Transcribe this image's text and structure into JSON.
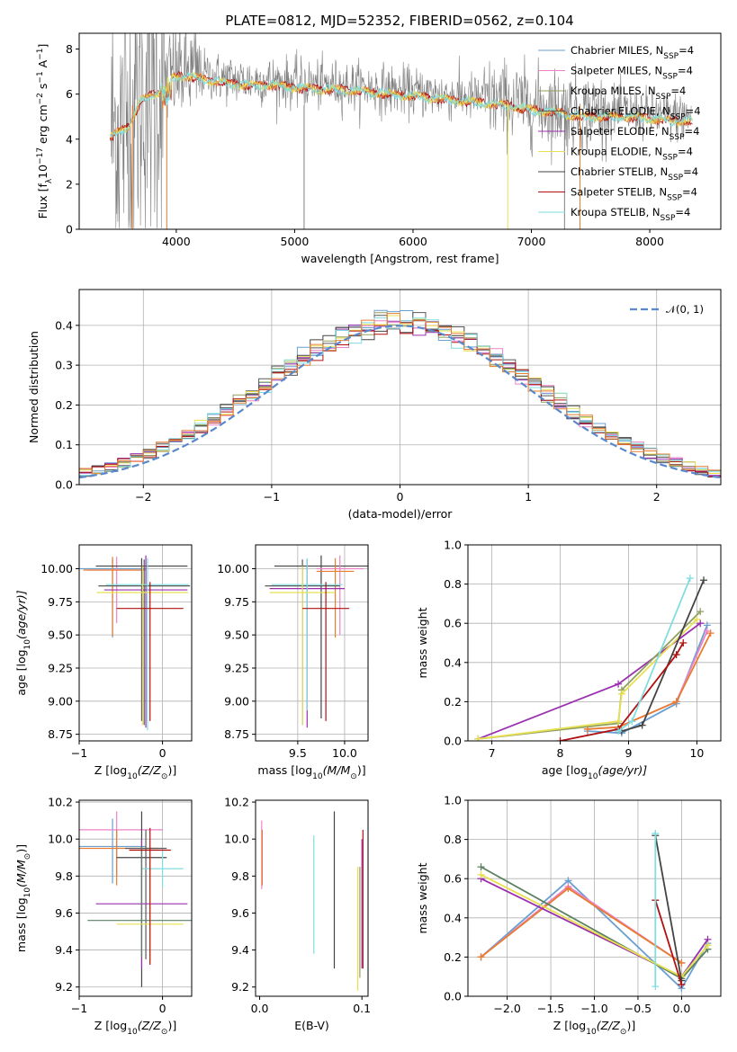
{
  "figure_title": "PLATE=0812, MJD=52352, FIBERID=0562, z=0.104",
  "legend_colors": [
    "#6a9fd0",
    "#ee82c8",
    "#8f9f5f",
    "#5a5a5a",
    "#9a30b0",
    "#e8e050",
    "#444444",
    "#b01010",
    "#80dde0"
  ],
  "chart_data": [
    {
      "id": "spectrum",
      "type": "line",
      "title": "PLATE=0812, MJD=52352, FIBERID=0562, z=0.104",
      "xlabel": "wavelength [Angstrom, rest frame]",
      "ylabel_parts": [
        "Flux [f",
        "λ",
        "10",
        "−17",
        " erg cm",
        "−2",
        " s",
        "−1",
        " A",
        "−1",
        "]"
      ],
      "xlim": [
        3180,
        8600
      ],
      "ylim": [
        0,
        8.7
      ],
      "xticks": [
        4000,
        5000,
        6000,
        7000,
        8000
      ],
      "yticks": [
        0,
        2,
        4,
        6,
        8
      ],
      "grid": false,
      "legend_position": "top-right",
      "legend": [
        {
          "label": "Chabrier MILES, N",
          "sub": "SSP",
          "suffix": "=4",
          "color": "#6a9fd0"
        },
        {
          "label": "Salpeter MILES, N",
          "sub": "SSP",
          "suffix": "=4",
          "color": "#ee82c8"
        },
        {
          "label": "Kroupa MILES, N",
          "sub": "SSP",
          "suffix": "=4",
          "color": "#8f9f5f"
        },
        {
          "label": "Chabrier ELODIE, N",
          "sub": "SSP",
          "suffix": "=4",
          "color": "#5a5a5a"
        },
        {
          "label": "Salpeter ELODIE, N",
          "sub": "SSP",
          "suffix": "=4",
          "color": "#9a30b0"
        },
        {
          "label": "Kroupa ELODIE, N",
          "sub": "SSP",
          "suffix": "=4",
          "color": "#e8e050"
        },
        {
          "label": "Chabrier STELIB, N",
          "sub": "SSP",
          "suffix": "=4",
          "color": "#444444"
        },
        {
          "label": "Salpeter STELIB, N",
          "sub": "SSP",
          "suffix": "=4",
          "color": "#b01010"
        },
        {
          "label": "Kroupa STELIB, N",
          "sub": "SSP",
          "suffix": "=4",
          "color": "#80dde0"
        }
      ],
      "continuum": [
        [
          3450,
          4.3
        ],
        [
          3600,
          4.8
        ],
        [
          3700,
          5.9
        ],
        [
          3850,
          6.3
        ],
        [
          3950,
          6.9
        ],
        [
          4050,
          7.0
        ],
        [
          4200,
          6.9
        ],
        [
          4400,
          6.7
        ],
        [
          4600,
          6.6
        ],
        [
          4800,
          6.6
        ],
        [
          5000,
          6.5
        ],
        [
          5200,
          6.4
        ],
        [
          5400,
          6.4
        ],
        [
          5600,
          6.3
        ],
        [
          5800,
          6.2
        ],
        [
          6000,
          6.1
        ],
        [
          6200,
          6.0
        ],
        [
          6400,
          5.9
        ],
        [
          6600,
          5.8
        ],
        [
          6800,
          5.7
        ],
        [
          7000,
          5.5
        ],
        [
          7200,
          5.4
        ],
        [
          7400,
          5.2
        ],
        [
          7600,
          5.2
        ],
        [
          7800,
          5.2
        ],
        [
          8000,
          5.1
        ],
        [
          8200,
          5.0
        ],
        [
          8350,
          5.0
        ]
      ]
    },
    {
      "id": "residuals",
      "type": "line",
      "xlabel": "(data-model)/error",
      "ylabel": "Normed distribution",
      "xlim": [
        -2.5,
        2.5
      ],
      "ylim": [
        0,
        0.49
      ],
      "xticks": [
        -2,
        -1,
        0,
        1,
        2
      ],
      "yticks": [
        0.0,
        0.1,
        0.2,
        0.3,
        0.4
      ],
      "grid": true,
      "legend_position": "top-right",
      "legend_label": "𝒩(0, 1)",
      "legend_color": "#5a88cc",
      "bin_width": 0.1
    },
    {
      "id": "age-vs-Z",
      "type": "scatter",
      "xlabel_parts": [
        "Z [log",
        "10",
        "(Z/Z",
        "⊙",
        ")]"
      ],
      "ylabel_parts": [
        "age  [log",
        "10",
        "(age/yr)]"
      ],
      "xlim": [
        -1.0,
        0.35
      ],
      "ylim": [
        8.7,
        10.18
      ],
      "xticks": [
        -1,
        0
      ],
      "yticks": [
        8.75,
        9.0,
        9.25,
        9.5,
        9.75,
        10.0
      ],
      "grid": true,
      "points": [
        {
          "x": -0.6,
          "y": 10.0,
          "xerr": 0.4,
          "yerr": [
            0.52,
            0.08
          ],
          "color": "#6a9fd0"
        },
        {
          "x": -0.55,
          "y": 9.99,
          "xerr": 0.35,
          "yerr": [
            0.4,
            0.1
          ],
          "color": "#ee82c8"
        },
        {
          "x": -0.6,
          "y": 9.99,
          "xerr": 0.35,
          "yerr": [
            0.5,
            0.1
          ],
          "color": "#e67d30"
        },
        {
          "x": -0.25,
          "y": 10.02,
          "xerr": 0.55,
          "yerr": [
            1.17,
            0.06
          ],
          "color": "#444444"
        },
        {
          "x": -0.2,
          "y": 9.84,
          "xerr": 0.5,
          "yerr": [
            1.04,
            0.26
          ],
          "color": "#9a30b0"
        },
        {
          "x": -0.22,
          "y": 9.87,
          "xerr": 0.55,
          "yerr": [
            1.05,
            0.2
          ],
          "color": "#5a5a5a"
        },
        {
          "x": -0.18,
          "y": 9.88,
          "xerr": 0.5,
          "yerr": [
            1.1,
            0.2
          ],
          "color": "#80dde0"
        },
        {
          "x": -0.24,
          "y": 9.82,
          "xerr": 0.55,
          "yerr": [
            1.0,
            0.2
          ],
          "color": "#e8e050"
        },
        {
          "x": -0.15,
          "y": 9.7,
          "xerr": 0.4,
          "yerr": [
            0.85,
            0.2
          ],
          "color": "#b01010"
        }
      ]
    },
    {
      "id": "age-vs-mass",
      "type": "scatter",
      "xlabel_parts": [
        "mass [log",
        "10",
        "(M/M",
        "⊙",
        ")]"
      ],
      "ylabel_parts": [],
      "xlim": [
        9.05,
        10.25
      ],
      "ylim": [
        8.7,
        10.18
      ],
      "xticks": [
        9.5,
        10.0
      ],
      "yticks": [
        8.75,
        9.0,
        9.25,
        9.5,
        9.75,
        10.0
      ],
      "grid": true,
      "points": [
        {
          "x": 9.75,
          "y": 10.02,
          "xerr": 0.5,
          "yerr": [
            1.15,
            0.08
          ],
          "color": "#444444"
        },
        {
          "x": 9.95,
          "y": 10.0,
          "xerr": 0.25,
          "yerr": [
            0.5,
            0.1
          ],
          "color": "#ee82c8"
        },
        {
          "x": 9.9,
          "y": 9.98,
          "xerr": 0.2,
          "yerr": [
            0.5,
            0.1
          ],
          "color": "#e67d30"
        },
        {
          "x": 9.6,
          "y": 9.85,
          "xerr": 0.4,
          "yerr": [
            1.05,
            0.22
          ],
          "color": "#9a30b0"
        },
        {
          "x": 9.55,
          "y": 9.87,
          "xerr": 0.4,
          "yerr": [
            1.05,
            0.2
          ],
          "color": "#5a5a5a"
        },
        {
          "x": 9.6,
          "y": 9.88,
          "xerr": 0.38,
          "yerr": [
            0.95,
            0.2
          ],
          "color": "#80dde0"
        },
        {
          "x": 9.55,
          "y": 9.82,
          "xerr": 0.35,
          "yerr": [
            1.0,
            0.2
          ],
          "color": "#e8e050"
        },
        {
          "x": 9.8,
          "y": 9.7,
          "xerr": 0.25,
          "yerr": [
            0.85,
            0.2
          ],
          "color": "#b01010"
        }
      ]
    },
    {
      "id": "weight-vs-age",
      "type": "line",
      "xlabel_parts": [
        "age  [log",
        "10",
        "(age/yr)]"
      ],
      "ylabel": "mass weight",
      "xlim": [
        6.65,
        10.35
      ],
      "ylim": [
        0,
        1.0
      ],
      "xticks": [
        7,
        8,
        9,
        10
      ],
      "yticks": [
        0.0,
        0.2,
        0.4,
        0.6,
        0.8,
        1.0
      ],
      "grid": true,
      "series": [
        {
          "color": "#6a9fd0",
          "x": [
            8.4,
            8.9,
            9.7,
            10.15
          ],
          "y": [
            0.05,
            0.04,
            0.19,
            0.59
          ]
        },
        {
          "color": "#ee82c8",
          "x": [
            8.4,
            8.85,
            9.7,
            10.15
          ],
          "y": [
            0.06,
            0.07,
            0.2,
            0.56
          ]
        },
        {
          "color": "#e67d30",
          "x": [
            8.4,
            8.85,
            9.7,
            10.2
          ],
          "y": [
            0.06,
            0.07,
            0.2,
            0.55
          ]
        },
        {
          "color": "#9a30b0",
          "x": [
            6.8,
            8.85,
            10.05
          ],
          "y": [
            0.01,
            0.29,
            0.6
          ]
        },
        {
          "color": "#8f9f5f",
          "x": [
            6.8,
            8.85,
            8.9,
            10.05
          ],
          "y": [
            0.01,
            0.09,
            0.26,
            0.66
          ]
        },
        {
          "color": "#e8e050",
          "x": [
            6.8,
            8.85,
            8.9,
            10.0
          ],
          "y": [
            0.01,
            0.1,
            0.24,
            0.62
          ]
        },
        {
          "color": "#444444",
          "x": [
            8.9,
            9.2,
            10.1
          ],
          "y": [
            0.05,
            0.08,
            0.82
          ]
        },
        {
          "color": "#b01010",
          "x": [
            8.0,
            8.85,
            9.7,
            9.8
          ],
          "y": [
            0.0,
            0.06,
            0.44,
            0.5
          ]
        },
        {
          "color": "#80dde0",
          "x": [
            8.85,
            9.05,
            9.9
          ],
          "y": [
            0.05,
            0.1,
            0.83
          ]
        }
      ]
    },
    {
      "id": "mass-vs-Z",
      "type": "scatter",
      "xlabel_parts": [
        "Z [log",
        "10",
        "(Z/Z",
        "⊙",
        ")]"
      ],
      "ylabel_parts": [
        "mass [log",
        "10",
        "(M/M",
        "⊙",
        ")]"
      ],
      "xlim": [
        -1.0,
        0.35
      ],
      "ylim": [
        9.15,
        10.21
      ],
      "xticks": [
        -1,
        0
      ],
      "yticks": [
        9.2,
        9.4,
        9.6,
        9.8,
        10.0,
        10.2
      ],
      "grid": true,
      "points": [
        {
          "x": -0.6,
          "y": 9.96,
          "xerr": 0.4,
          "yerr": [
            0.2,
            0.15
          ],
          "color": "#6a9fd0"
        },
        {
          "x": -0.55,
          "y": 10.05,
          "xerr": 0.55,
          "yerr": [
            0.25,
            0.1
          ],
          "color": "#ee82c8"
        },
        {
          "x": -0.55,
          "y": 9.95,
          "xerr": 0.5,
          "yerr": [
            0.2,
            0.1
          ],
          "color": "#e67d30"
        },
        {
          "x": -0.2,
          "y": 9.95,
          "xerr": 0.25,
          "yerr": [
            0.6,
            0.1
          ],
          "color": "#5a5a5a"
        },
        {
          "x": -0.25,
          "y": 9.9,
          "xerr": 0.3,
          "yerr": [
            0.7,
            0.25
          ],
          "color": "#444444"
        },
        {
          "x": 0.0,
          "y": 9.84,
          "xerr": 0.25,
          "yerr": [
            0.1,
            0.1
          ],
          "color": "#80dde0"
        },
        {
          "x": -0.25,
          "y": 9.65,
          "xerr": 0.55,
          "yerr": [
            0.35,
            0.35
          ],
          "color": "#9a30b0"
        },
        {
          "x": -0.25,
          "y": 9.56,
          "xerr": 0.65,
          "yerr": [
            0.2,
            0.4
          ],
          "color": "#5a8060"
        },
        {
          "x": -0.15,
          "y": 9.54,
          "xerr": 0.4,
          "yerr": [
            0.2,
            0.4
          ],
          "color": "#e8e050"
        },
        {
          "x": -0.15,
          "y": 9.94,
          "xerr": 0.25,
          "yerr": [
            0.62,
            0.12
          ],
          "color": "#b01010"
        }
      ]
    },
    {
      "id": "mass-vs-EBV",
      "type": "scatter",
      "xlabel": "E(B-V)",
      "ylabel_parts": [],
      "xlim": [
        -0.004,
        0.106
      ],
      "ylim": [
        9.15,
        10.21
      ],
      "xticks": [
        0.0,
        0.1
      ],
      "yticks": [
        9.2,
        9.4,
        9.6,
        9.8,
        10.0,
        10.2
      ],
      "grid": false,
      "points": [
        {
          "x": 0.002,
          "y": 9.95,
          "yerr": [
            0.22,
            0.15
          ],
          "color": "#ee82c8"
        },
        {
          "x": 0.0025,
          "y": 9.93,
          "yerr": [
            0.18,
            0.12
          ],
          "color": "#e67d30"
        },
        {
          "x": 0.053,
          "y": 9.7,
          "yerr": [
            0.32,
            0.32
          ],
          "color": "#80dde0"
        },
        {
          "x": 0.073,
          "y": 9.72,
          "yerr": [
            0.42,
            0.43
          ],
          "color": "#444444"
        },
        {
          "x": 0.096,
          "y": 9.53,
          "yerr": [
            0.35,
            0.32
          ],
          "color": "#e8e050"
        },
        {
          "x": 0.098,
          "y": 9.55,
          "yerr": [
            0.3,
            0.3
          ],
          "color": "#8f9f5f"
        },
        {
          "x": 0.101,
          "y": 9.7,
          "yerr": [
            0.4,
            0.35
          ],
          "color": "#b01010"
        },
        {
          "x": 0.1,
          "y": 9.62,
          "yerr": [
            0.32,
            0.38
          ],
          "color": "#9a30b0"
        }
      ]
    },
    {
      "id": "weight-vs-Z",
      "type": "line",
      "xlabel_parts": [
        "Z [log",
        "10",
        "(Z/Z",
        "⊙",
        ")]"
      ],
      "ylabel": "mass weight",
      "xlim": [
        -2.45,
        0.45
      ],
      "ylim": [
        0,
        1.0
      ],
      "xticks": [
        -2.0,
        -1.5,
        -1.0,
        -0.5,
        0.0
      ],
      "yticks": [
        0.0,
        0.2,
        0.4,
        0.6,
        0.8,
        1.0
      ],
      "grid": true,
      "series": [
        {
          "color": "#6a9fd0",
          "x": [
            -2.3,
            -1.3,
            0.0,
            0.3
          ],
          "y": [
            0.2,
            0.59,
            0.04,
            0.27
          ]
        },
        {
          "color": "#ee82c8",
          "x": [
            -2.3,
            -1.3,
            0.0
          ],
          "y": [
            0.2,
            0.56,
            0.17
          ]
        },
        {
          "color": "#e67d30",
          "x": [
            -2.3,
            -1.3,
            0.0
          ],
          "y": [
            0.2,
            0.55,
            0.17
          ]
        },
        {
          "color": "#9a30b0",
          "x": [
            -2.3,
            0.0,
            0.3
          ],
          "y": [
            0.6,
            0.1,
            0.29
          ]
        },
        {
          "color": "#5a8060",
          "x": [
            -2.3,
            0.0,
            0.3
          ],
          "y": [
            0.66,
            0.09,
            0.24
          ]
        },
        {
          "color": "#e8e050",
          "x": [
            -2.3,
            0.0,
            0.3
          ],
          "y": [
            0.62,
            0.1,
            0.26
          ]
        },
        {
          "color": "#444444",
          "x": [
            -0.3,
            0.0
          ],
          "y": [
            0.82,
            0.08
          ]
        },
        {
          "color": "#b01010",
          "x": [
            -0.3,
            0.0
          ],
          "y": [
            0.49,
            0.06
          ]
        },
        {
          "color": "#80dde0",
          "x": [
            -0.3,
            -0.3
          ],
          "y": [
            0.83,
            0.05
          ]
        }
      ]
    }
  ]
}
